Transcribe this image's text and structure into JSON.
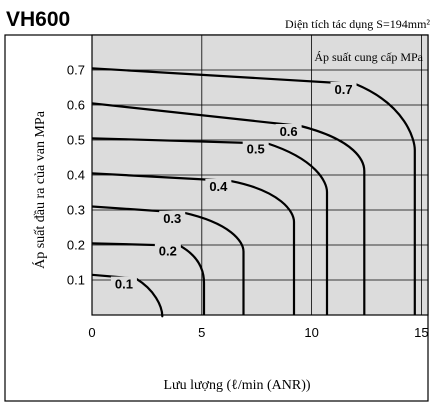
{
  "chart_data": {
    "type": "line",
    "title": "VH600",
    "subtitle": "Diện tích tác dụng S=194mm²",
    "xlabel": "Lưu lượng (ℓ/min (ANR))",
    "ylabel": "Áp suất đầu ra của van MPa",
    "legend_title": "Áp suất cung cấp MPa",
    "xlim": [
      0,
      15.3
    ],
    "ylim": [
      0,
      0.8
    ],
    "x_ticks": [
      "0",
      "5",
      "10",
      "15"
    ],
    "y_ticks": [
      "0.1",
      "0.2",
      "0.3",
      "0.4",
      "0.5",
      "0.6",
      "0.7"
    ],
    "grid": true,
    "series": [
      {
        "name": "0.1",
        "values": [
          [
            0,
            0.115
          ],
          [
            2,
            0.104
          ],
          [
            2.85,
            0.072
          ],
          [
            3.2,
            0.025
          ],
          [
            3.2,
            0
          ]
        ]
      },
      {
        "name": "0.2",
        "values": [
          [
            0,
            0.205
          ],
          [
            4,
            0.198
          ],
          [
            4.95,
            0.165
          ],
          [
            5.1,
            0.12
          ],
          [
            5.1,
            0
          ]
        ]
      },
      {
        "name": "0.3",
        "values": [
          [
            0,
            0.31
          ],
          [
            4.2,
            0.292
          ],
          [
            6.3,
            0.262
          ],
          [
            6.9,
            0.21
          ],
          [
            6.9,
            0
          ]
        ]
      },
      {
        "name": "0.4",
        "values": [
          [
            0,
            0.405
          ],
          [
            6.3,
            0.383
          ],
          [
            8.6,
            0.355
          ],
          [
            9.2,
            0.295
          ],
          [
            9.2,
            0
          ]
        ]
      },
      {
        "name": "0.5",
        "values": [
          [
            0,
            0.505
          ],
          [
            8,
            0.49
          ],
          [
            10.2,
            0.445
          ],
          [
            10.7,
            0.38
          ],
          [
            10.7,
            0
          ]
        ]
      },
      {
        "name": "0.6",
        "values": [
          [
            0,
            0.605
          ],
          [
            9.5,
            0.54
          ],
          [
            12,
            0.5
          ],
          [
            12.4,
            0.44
          ],
          [
            12.4,
            0
          ]
        ]
      },
      {
        "name": "0.7",
        "values": [
          [
            0,
            0.705
          ],
          [
            12,
            0.66
          ],
          [
            14.3,
            0.6
          ],
          [
            14.7,
            0.5
          ],
          [
            14.7,
            0
          ]
        ]
      }
    ]
  }
}
